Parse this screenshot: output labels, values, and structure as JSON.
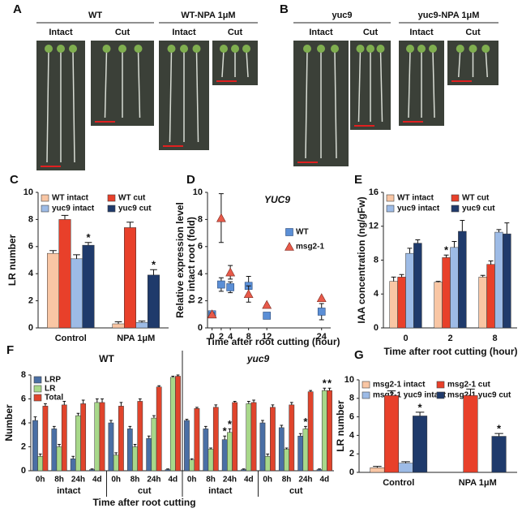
{
  "photo_panels": [
    {
      "label": "A",
      "groups": [
        {
          "title": "WT",
          "columns": [
            "Intact",
            "Cut"
          ]
        },
        {
          "title": "WT-NPA 1μM",
          "columns": [
            "Intact",
            "Cut"
          ]
        }
      ]
    },
    {
      "label": "B",
      "groups": [
        {
          "title": "yuc9",
          "columns": [
            "Intact",
            "Cut"
          ]
        },
        {
          "title": "yuc9-NPA 1μM",
          "columns": [
            "Intact",
            "Cut"
          ]
        }
      ]
    }
  ],
  "chart_data": [
    {
      "type": "bar",
      "panel": "C",
      "ylabel": [
        "LR number"
      ],
      "categories": [
        "Control",
        "NPA 1μM"
      ],
      "ylim": [
        0,
        10
      ],
      "yticks": [
        0,
        2,
        4,
        6,
        8,
        10
      ],
      "series": [
        {
          "name": "WT intact",
          "color": "#f9c6a4",
          "values": [
            5.5,
            0.3
          ],
          "errors": [
            0.2,
            0.15
          ],
          "significance": [
            null,
            null
          ]
        },
        {
          "name": "WT cut",
          "color": "#e8402a",
          "values": [
            8.0,
            7.4
          ],
          "errors": [
            0.3,
            0.4
          ],
          "significance": [
            null,
            null
          ]
        },
        {
          "name": "yuc9 intact",
          "color": "#9dbbe6",
          "values": [
            5.1,
            0.4
          ],
          "errors": [
            0.3,
            0.1
          ],
          "significance": [
            null,
            null
          ]
        },
        {
          "name": "yuc9 cut",
          "color": "#1f3a6b",
          "values": [
            6.1,
            3.9
          ],
          "errors": [
            0.2,
            0.4
          ],
          "significance": [
            "*",
            "*"
          ]
        }
      ]
    },
    {
      "type": "scatter",
      "panel": "D",
      "title": "YUC9",
      "ylabel": [
        "Relative expression level",
        "to intact root (fold)"
      ],
      "xlabel": "Time after root cutting (hour)",
      "x": [
        0,
        2,
        4,
        8,
        12,
        24
      ],
      "xlim": [
        -1,
        26
      ],
      "xticks": [
        0,
        2,
        4,
        8,
        12,
        24
      ],
      "ylim": [
        0,
        10
      ],
      "yticks": [
        0,
        2,
        4,
        6,
        8,
        10
      ],
      "series": [
        {
          "name": "WT",
          "color": "#5b8fd6",
          "marker": "square",
          "values": [
            1.0,
            3.2,
            3.0,
            3.1,
            0.9,
            1.2
          ],
          "errors": [
            0.1,
            0.5,
            0.4,
            0.7,
            0.2,
            0.6
          ]
        },
        {
          "name": "msg2-1",
          "color": "#e85a4a",
          "marker": "triangle",
          "values": [
            1.0,
            8.1,
            4.1,
            2.5,
            1.7,
            2.2
          ],
          "errors": [
            0.1,
            1.8,
            0.5,
            0.6,
            0,
            0
          ]
        }
      ]
    },
    {
      "type": "bar",
      "panel": "E",
      "ylabel": [
        "IAA concentration (ng/gFw)"
      ],
      "xlabel": "Time after root cutting (hour)",
      "categories": [
        "0",
        "2",
        "8"
      ],
      "ylim": [
        0,
        16
      ],
      "yticks": [
        0,
        4,
        8,
        12,
        16
      ],
      "series": [
        {
          "name": "WT intact",
          "color": "#f9c6a4",
          "values": [
            5.5,
            5.4,
            6.0
          ],
          "errors": [
            0.5,
            0.1,
            0.2
          ],
          "significance": [
            null,
            null,
            null
          ]
        },
        {
          "name": "WT cut",
          "color": "#e8402a",
          "values": [
            6.0,
            8.3,
            7.5
          ],
          "errors": [
            0.3,
            0.3,
            0.4
          ],
          "significance": [
            null,
            "*",
            null
          ]
        },
        {
          "name": "yuc9 intact",
          "color": "#9dbbe6",
          "values": [
            8.8,
            9.5,
            11.3
          ],
          "errors": [
            0.6,
            0.7,
            0.3
          ],
          "significance": [
            null,
            null,
            null
          ]
        },
        {
          "name": "yuc9 cut",
          "color": "#1f3a6b",
          "values": [
            10.0,
            11.4,
            11.1
          ],
          "errors": [
            0.4,
            1.3,
            1.3
          ],
          "significance": [
            null,
            null,
            null
          ]
        }
      ]
    },
    {
      "type": "bar",
      "panel": "F",
      "ylabel": [
        "Number"
      ],
      "xlabel": "Time after root cutting",
      "groups": [
        "WT",
        "yuc9"
      ],
      "subgroups": [
        "intact",
        "cut",
        "intact",
        "cut"
      ],
      "categories": [
        "0h",
        "8h",
        "24h",
        "4d",
        "0h",
        "8h",
        "24h",
        "4d",
        "0h",
        "8h",
        "24h",
        "4d",
        "0h",
        "8h",
        "24h",
        "4d"
      ],
      "ylim": [
        0,
        8
      ],
      "yticks": [
        0,
        2,
        4,
        6,
        8
      ],
      "series": [
        {
          "name": "LRP",
          "color": "#4a6fa5",
          "values": [
            4.2,
            3.5,
            1.0,
            0.1,
            4.0,
            3.5,
            2.7,
            0.1,
            4.2,
            3.5,
            2.6,
            0.1,
            4.0,
            3.6,
            2.9,
            0.1
          ],
          "errors": [
            0.3,
            0.2,
            0.2,
            0.05,
            0.2,
            0.2,
            0.2,
            0.05,
            0.1,
            0.2,
            0.3,
            0.05,
            0.2,
            0.2,
            0.2,
            0.05
          ],
          "significance": [
            null,
            null,
            null,
            null,
            null,
            null,
            null,
            null,
            null,
            null,
            "*",
            null,
            null,
            null,
            null,
            null
          ]
        },
        {
          "name": "LR",
          "color": "#a8d88a",
          "values": [
            1.2,
            2.0,
            4.6,
            5.7,
            1.3,
            2.0,
            4.4,
            7.8,
            0.9,
            1.8,
            3.2,
            5.6,
            1.2,
            1.8,
            3.5,
            6.7
          ],
          "errors": [
            0.2,
            0.2,
            0.2,
            0.3,
            0.2,
            0.2,
            0.2,
            0.1,
            0.1,
            0.1,
            0.3,
            0.2,
            0.2,
            0.1,
            0.2,
            0.2
          ],
          "significance": [
            null,
            null,
            null,
            null,
            null,
            null,
            null,
            null,
            null,
            null,
            "*",
            null,
            null,
            null,
            "*",
            "*"
          ]
        },
        {
          "name": "Total",
          "color": "#e0442c",
          "values": [
            5.4,
            5.5,
            5.6,
            5.7,
            5.4,
            5.8,
            7.0,
            7.9,
            5.2,
            5.3,
            5.7,
            5.7,
            5.3,
            5.5,
            6.6,
            6.7
          ],
          "errors": [
            0.2,
            0.3,
            0.3,
            0.3,
            0.3,
            0.2,
            0.1,
            0.1,
            0.1,
            0.2,
            0.1,
            0.2,
            0.2,
            0.2,
            0.1,
            0.2
          ],
          "significance": [
            null,
            null,
            null,
            null,
            null,
            null,
            null,
            null,
            null,
            null,
            null,
            null,
            null,
            null,
            null,
            "*"
          ]
        }
      ]
    },
    {
      "type": "bar",
      "panel": "G",
      "ylabel": [
        "LR number"
      ],
      "categories": [
        "Control",
        "NPA 1μM"
      ],
      "ylim": [
        0,
        10
      ],
      "yticks": [
        0,
        2,
        4,
        6,
        8,
        10
      ],
      "series": [
        {
          "name": "msg2-1 intact",
          "color": "#f9c6a4",
          "values": [
            0.5,
            null
          ],
          "errors": [
            0.15,
            null
          ],
          "significance": [
            null,
            null
          ]
        },
        {
          "name": "msg2-1 cut",
          "color": "#e8402a",
          "values": [
            8.3,
            8.3
          ],
          "errors": [
            0.5,
            0.7
          ],
          "significance": [
            null,
            null
          ]
        },
        {
          "name": "msg2-1 yuc9 intact",
          "color": "#9dbbe6",
          "values": [
            1.0,
            null
          ],
          "errors": [
            0.15,
            null
          ],
          "significance": [
            null,
            null
          ]
        },
        {
          "name": "msg2-1 yuc9 cut",
          "color": "#1f3a6b",
          "values": [
            6.1,
            3.9
          ],
          "errors": [
            0.4,
            0.3
          ],
          "significance": [
            "*",
            "*"
          ]
        }
      ]
    }
  ]
}
